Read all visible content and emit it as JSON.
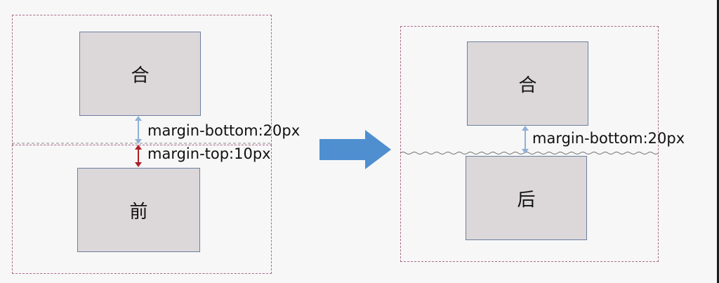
{
  "diagram": {
    "before": {
      "top_block": {
        "text": "合"
      },
      "bottom_block": {
        "text": "前"
      },
      "margin_bottom_label": "margin-bottom:20px",
      "margin_top_label": "margin-top:10px"
    },
    "after": {
      "top_block": {
        "text": "合"
      },
      "bottom_block": {
        "text": "后"
      },
      "margin_bottom_label": "margin-bottom:20px"
    },
    "colors": {
      "arrow": "#4f8fd0",
      "margin_bottom_arrow": "#8fb0d8",
      "margin_top_arrow": "#b01f26",
      "dashed_border": "#a86b8a",
      "block_fill": "#dcd8da",
      "block_border": "#6d7f9f"
    }
  }
}
